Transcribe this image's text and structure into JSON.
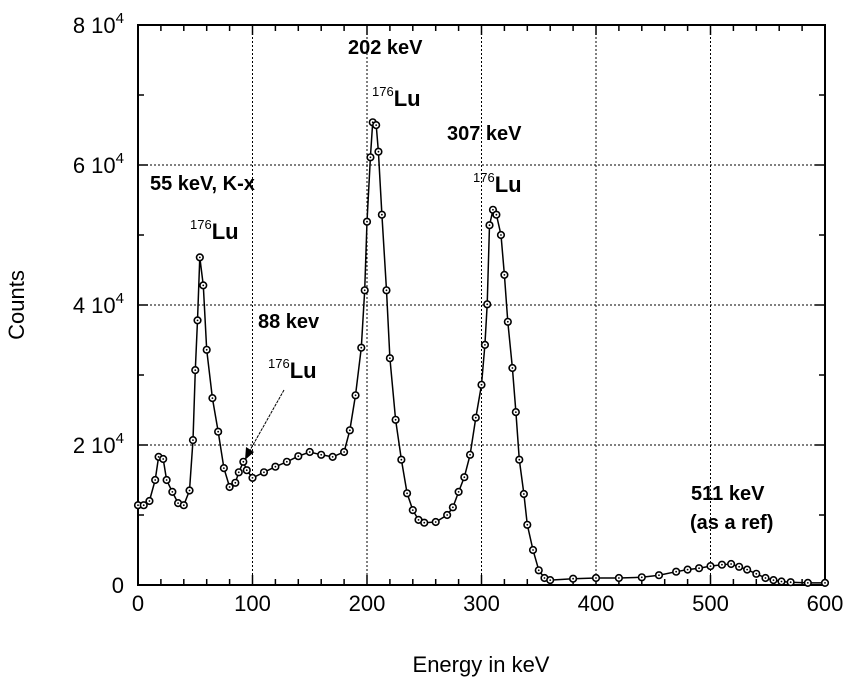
{
  "chart_data": {
    "type": "line",
    "title": "",
    "xlabel": "Energy in keV",
    "ylabel": "Counts",
    "xlim": [
      0,
      600
    ],
    "ylim": [
      0,
      80000
    ],
    "grid": true,
    "marker": "circle-with-dot",
    "x_ticks": [
      "0",
      "100",
      "200",
      "300",
      "400",
      "500",
      "600"
    ],
    "y_ticks": [
      {
        "mant": "0",
        "exp": ""
      },
      {
        "mant": "2 10",
        "exp": "4"
      },
      {
        "mant": "4 10",
        "exp": "4"
      },
      {
        "mant": "6 10",
        "exp": "4"
      },
      {
        "mant": "8 10",
        "exp": "4"
      }
    ],
    "annotations": [
      {
        "text": "202 keV",
        "iso_mass": "176",
        "iso": "Lu"
      },
      {
        "text": "307 keV",
        "iso_mass": "176",
        "iso": "Lu"
      },
      {
        "text": "55 keV, K-x",
        "iso_mass": "176",
        "iso": "Lu"
      },
      {
        "text": "88 kev",
        "iso_mass": "176",
        "iso": "Lu"
      },
      {
        "text": "511 keV",
        "text2": "(as a ref)"
      }
    ],
    "series": [
      {
        "x": [
          0,
          5,
          10,
          15,
          18,
          22,
          25,
          30,
          35,
          40,
          45,
          48,
          50,
          52,
          54,
          57,
          60,
          65,
          70,
          75,
          80,
          85,
          88,
          92,
          95,
          100,
          110,
          120,
          130,
          140,
          150,
          160,
          170,
          180,
          185,
          190,
          195,
          198,
          200,
          203,
          205,
          208,
          210,
          213,
          217,
          220,
          225,
          230,
          235,
          240,
          245,
          250,
          260,
          270,
          275,
          280,
          285,
          290,
          295,
          300,
          303,
          305,
          307,
          310,
          313,
          317,
          320,
          323,
          327,
          330,
          333,
          337,
          340,
          345,
          350,
          355,
          360,
          380,
          400,
          420,
          440,
          455,
          470,
          480,
          490,
          500,
          510,
          518,
          525,
          532,
          540,
          548,
          555,
          562,
          570,
          585,
          600
        ],
        "y": [
          11400,
          11400,
          12000,
          15000,
          18300,
          18000,
          15000,
          13300,
          11700,
          11400,
          13500,
          20700,
          30700,
          37800,
          46800,
          42800,
          33600,
          26700,
          21900,
          16700,
          14000,
          14600,
          16100,
          17600,
          16400,
          15300,
          16100,
          16900,
          17600,
          18400,
          19000,
          18600,
          18300,
          19000,
          22100,
          27100,
          33900,
          42100,
          51900,
          61100,
          66100,
          65700,
          61900,
          52900,
          42100,
          32400,
          23600,
          17900,
          13100,
          10700,
          9300,
          8900,
          9000,
          10000,
          11100,
          13300,
          15400,
          18600,
          23900,
          28600,
          34300,
          40100,
          51400,
          53600,
          52900,
          50000,
          44300,
          37600,
          31000,
          24700,
          17900,
          13000,
          8600,
          5000,
          2100,
          1000,
          700,
          900,
          1000,
          1000,
          1100,
          1400,
          1900,
          2200,
          2400,
          2700,
          2900,
          3000,
          2600,
          2200,
          1600,
          1000,
          700,
          500,
          400,
          300,
          300
        ]
      }
    ]
  }
}
